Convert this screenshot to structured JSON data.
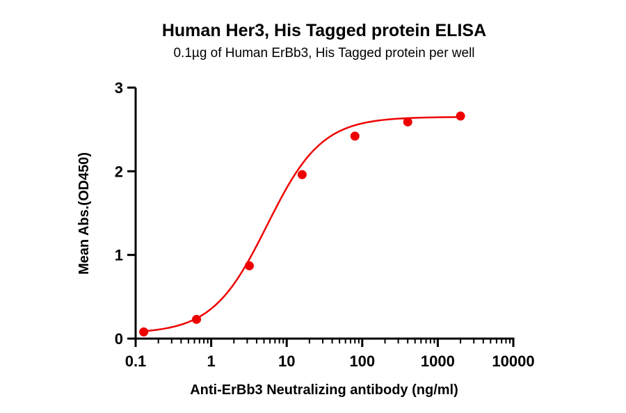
{
  "chart_data": {
    "type": "scatter",
    "title": "Human Her3, His Tagged protein ELISA",
    "subtitle": "0.1µg of Human ErBb3, His Tagged protein per well",
    "xlabel": "Anti-ErBb3 Neutralizing antibody (ng/ml)",
    "ylabel": "Mean Abs.(OD450)",
    "x_scale": "log",
    "xlim": [
      0.1,
      10000
    ],
    "ylim": [
      0,
      3
    ],
    "x_ticks": [
      0.1,
      1,
      10,
      100,
      1000,
      10000
    ],
    "x_tick_labels": [
      "0.1",
      "1",
      "10",
      "100",
      "1000",
      "10000"
    ],
    "y_ticks": [
      0,
      1,
      2,
      3
    ],
    "y_tick_labels": [
      "0",
      "1",
      "2",
      "3"
    ],
    "grid": false,
    "legend": "none",
    "series": [
      {
        "x": [
          0.128,
          0.64,
          3.2,
          16,
          80,
          400,
          2000
        ],
        "y": [
          0.08,
          0.23,
          0.87,
          1.96,
          2.42,
          2.59,
          2.66
        ],
        "color": "#ee0000"
      }
    ],
    "fit_curve": {
      "model": "4PL",
      "bottom": 0.06,
      "top": 2.65,
      "ec50": 5.5,
      "hill": 1.2,
      "color": "#ee0000"
    }
  }
}
